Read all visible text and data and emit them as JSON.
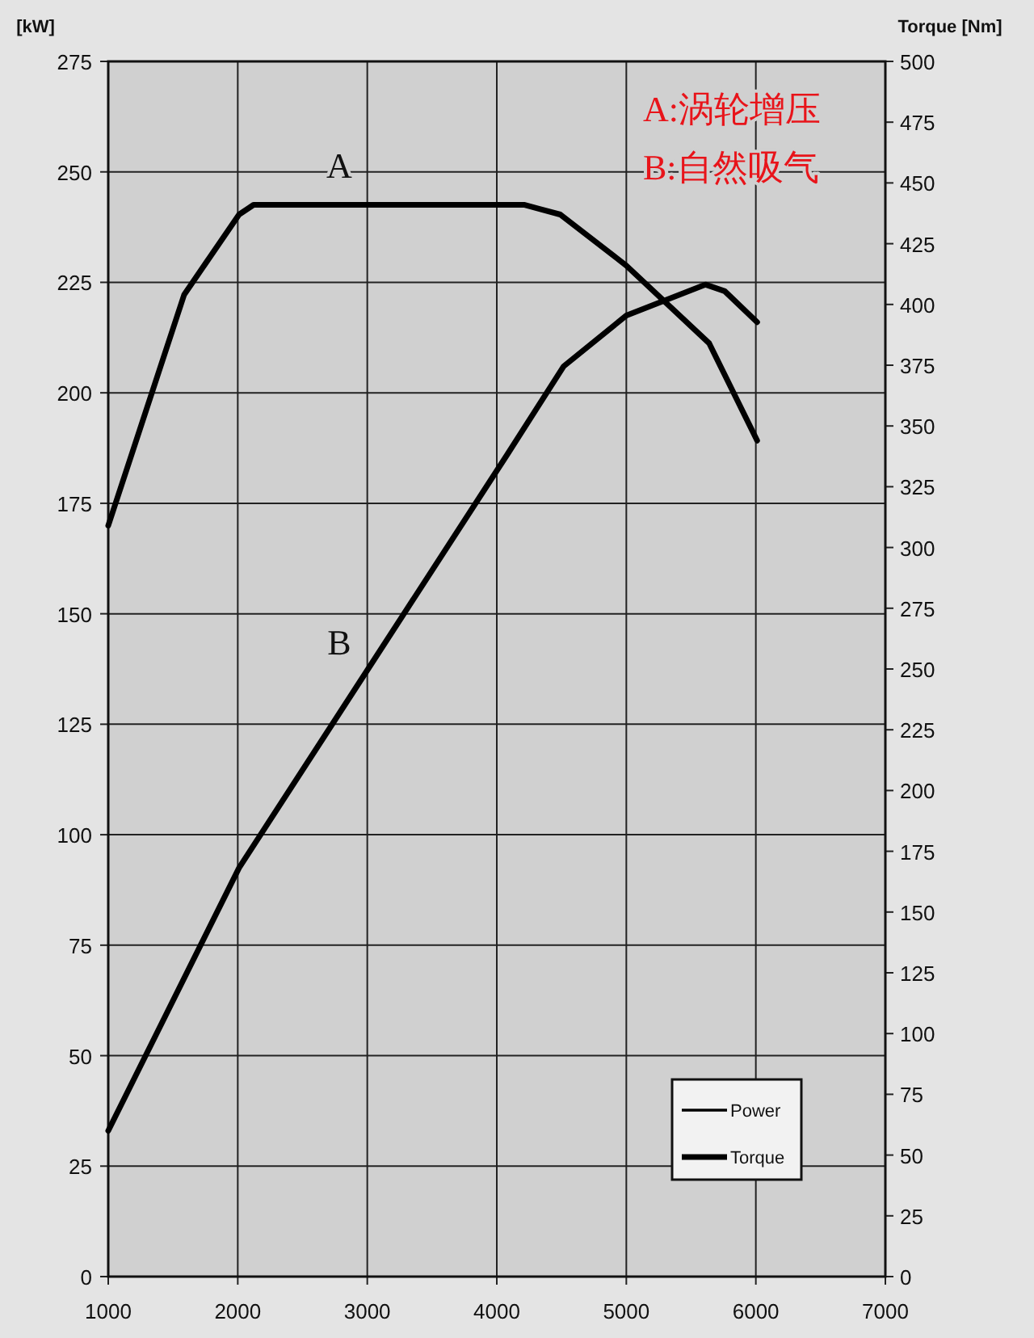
{
  "chart_data": {
    "type": "line",
    "ylabel": "[kW]",
    "y2label": "Torque [Nm]",
    "xlim": [
      1000,
      7000
    ],
    "xticks": [
      1000,
      2000,
      3000,
      4000,
      5000,
      6000,
      7000
    ],
    "ylim": [
      0,
      275
    ],
    "yticks": [
      0,
      25,
      50,
      75,
      100,
      125,
      150,
      175,
      200,
      225,
      250,
      275
    ],
    "y2lim": [
      0,
      500
    ],
    "y2ticks": [
      0,
      25,
      50,
      75,
      100,
      125,
      150,
      175,
      200,
      225,
      250,
      275,
      300,
      325,
      350,
      375,
      400,
      425,
      450,
      475,
      500
    ],
    "grid": true,
    "legend": "bottom right",
    "marker": "none",
    "line_style": "solid",
    "series": [
      {
        "name": "Power",
        "color": "#000000",
        "axis": "y",
        "x": [
          1000,
          2010,
          2995,
          4080,
          4516,
          5000,
          5610,
          5760,
          6010
        ],
        "values": [
          33,
          92.5,
          137,
          186,
          206,
          217.5,
          224.5,
          223,
          216
        ]
      },
      {
        "name": "Torque",
        "color": "#000000",
        "axis": "y2",
        "x": [
          1000,
          1586,
          2010,
          2122,
          4210,
          4490,
          5000,
          5640,
          5760,
          6010
        ],
        "values": [
          309,
          404,
          437,
          441,
          441,
          437,
          416,
          384,
          371,
          344
        ]
      }
    ],
    "annotations": [
      "A",
      "B",
      "A:涡轮增压",
      "B:自然吸气"
    ]
  }
}
